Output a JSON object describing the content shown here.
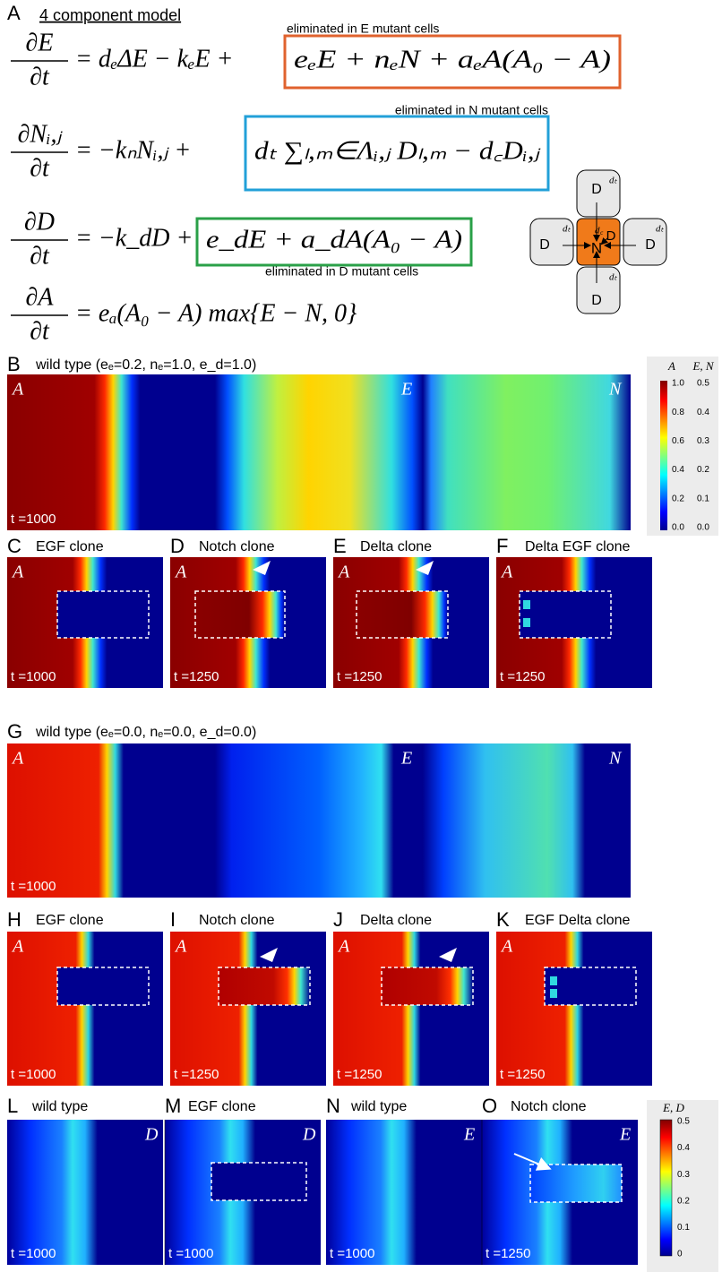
{
  "panel_a": {
    "label": "A",
    "title": "4 component model",
    "equations": [
      {
        "num": "∂E",
        "den": "∂t",
        "rhs": "= dₑΔE − kₑE +",
        "boxed": "eₑE + nₑN + aₑA(A₀ − A)",
        "note": "eliminated in E mutant cells"
      },
      {
        "num": "∂Nᵢ,ⱼ",
        "den": "∂t",
        "rhs": "= −kₙNᵢ,ⱼ +",
        "boxed": "dₜ ∑ₗ,ₘ∈Λᵢ,ⱼ Dₗ,ₘ − d꜀Dᵢ,ⱼ",
        "note": "eliminated in N mutant cells"
      },
      {
        "num": "∂D",
        "den": "∂t",
        "rhs": "= −k_dD +",
        "boxed": "e_dE + a_dA(A₀ − A)",
        "note": "eliminated in D mutant cells"
      },
      {
        "num": "∂A",
        "den": "∂t",
        "rhs": "= eₐ(A₀ − A) max{E − N, 0}"
      }
    ],
    "diagram": {
      "neighbor": "D",
      "rate": "dₜ",
      "center": "N",
      "self": "D",
      "self_rate": "d꜀"
    }
  },
  "panel_b": {
    "label": "B",
    "title": "wild type (eₑ=0.2, nₑ=1.0, e_d=1.0)",
    "maps": [
      "A",
      "E",
      "N"
    ],
    "time": "t =1000"
  },
  "colorbar_top": {
    "headers": [
      "A",
      "E, N"
    ],
    "ticks_a": [
      "1.0",
      "0.8",
      "0.6",
      "0.4",
      "0.2",
      "0.0"
    ],
    "ticks_en": [
      "0.5",
      "0.4",
      "0.3",
      "0.2",
      "0.1",
      "0.0"
    ]
  },
  "row_c_f": [
    {
      "label": "C",
      "title": "EGF clone",
      "map": "A",
      "time": "t =1000"
    },
    {
      "label": "D",
      "title": "Notch clone",
      "map": "A",
      "time": "t =1250"
    },
    {
      "label": "E",
      "title": "Delta clone",
      "map": "A",
      "time": "t =1250"
    },
    {
      "label": "F",
      "title": "Delta EGF clone",
      "map": "A",
      "time": "t =1250"
    }
  ],
  "panel_g": {
    "label": "G",
    "title": "wild type (eₑ=0.0, nₑ=0.0, e_d=0.0)",
    "maps": [
      "A",
      "E",
      "N"
    ],
    "time": "t =1000"
  },
  "row_h_k": [
    {
      "label": "H",
      "title": "EGF clone",
      "map": "A",
      "time": "t =1000"
    },
    {
      "label": "I",
      "title": "Notch clone",
      "map": "A",
      "time": "t =1250"
    },
    {
      "label": "J",
      "title": "Delta clone",
      "map": "A",
      "time": "t =1250"
    },
    {
      "label": "K",
      "title": "EGF Delta clone",
      "map": "A",
      "time": "t =1250"
    }
  ],
  "row_l_o": [
    {
      "label": "L",
      "title": "wild type",
      "map": "D",
      "time": "t =1000"
    },
    {
      "label": "M",
      "title": "EGF clone",
      "map": "D",
      "time": "t =1000"
    },
    {
      "label": "N",
      "title": "wild type",
      "map": "E",
      "time": "t =1000"
    },
    {
      "label": "O",
      "title": "Notch clone",
      "map": "E",
      "time": "t =1250"
    }
  ],
  "colorbar_bottom": {
    "header": "E, D",
    "ticks": [
      "0.5",
      "0.4",
      "0.3",
      "0.2",
      "0.1",
      "0"
    ]
  }
}
